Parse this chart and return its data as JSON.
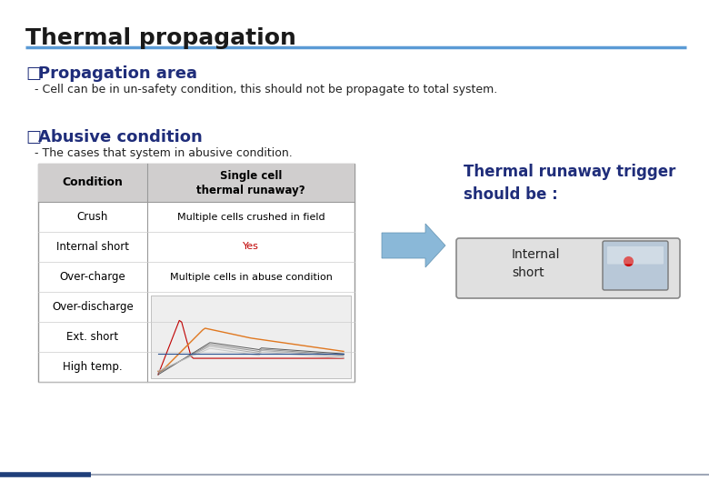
{
  "title": "Thermal propagation",
  "title_color": "#1a1a1a",
  "title_fontsize": 18,
  "header_line_color": "#5b9bd5",
  "section1_bullet": "□",
  "section1_heading": "Propagation area",
  "section1_heading_color": "#1f2d7a",
  "section1_heading_fontsize": 13,
  "section1_body": "- Cell can be in un-safety condition, this should not be propagate to total system.",
  "section1_body_fontsize": 9,
  "section2_bullet": "□",
  "section2_heading": "Abusive condition",
  "section2_heading_color": "#1f2d7a",
  "section2_heading_fontsize": 13,
  "section2_body": "- The cases that system in abusive condition.",
  "section2_body_fontsize": 9,
  "table_header_col1": "Condition",
  "table_header_col2": "Single cell\nthermal runaway?",
  "table_header_bg": "#d0cece",
  "table_rows": [
    [
      "Crush",
      "Multiple cells crushed in field",
      "black"
    ],
    [
      "Internal short",
      "Yes",
      "#c00000"
    ],
    [
      "Over-charge",
      "Multiple cells in abuse condition",
      "black"
    ],
    [
      "Over-discharge",
      "",
      "black"
    ],
    [
      "Ext. short",
      "",
      "black"
    ],
    [
      "High temp.",
      "",
      "black"
    ]
  ],
  "trigger_text": "Thermal runaway trigger\nshould be :",
  "trigger_text_color": "#1f2d7a",
  "trigger_text_fontsize": 12,
  "trigger_label": "Internal\nshort",
  "footer_line_color_left": "#1f3f7a",
  "footer_line_color_right": "#a0a8b8"
}
